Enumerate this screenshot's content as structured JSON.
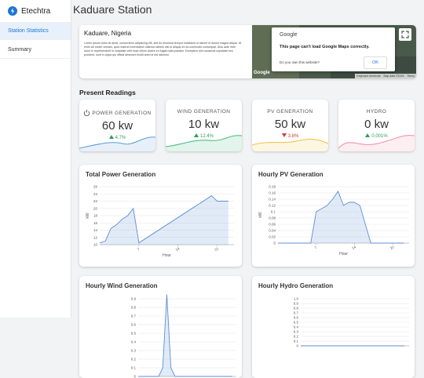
{
  "sidebar": {
    "brand": "Etechtra",
    "menu": [
      "Station Statistics",
      "Summary"
    ]
  },
  "header": {
    "title": "Kaduare Station"
  },
  "station": {
    "location": "Kaduare, Nigeria",
    "description": "Lorem ipsum dolor sit amet, consectetur adipiscing elit, sed do eiusmod tempor incididunt ut labore et dolore magna aliqua. Ut enim ad minim veniam, quis nostrud exercitation ullamco laboris nisi ut aliquip ex ea commodo consequat. Duis aute irure dolor in reprehenderit in voluptate velit esse cillum dolore eu fugiat nulla pariatur. Excepteur sint occaecat cupidatat non proident, sunt in culpa qui officia deserunt mollit anim id est laborum."
  },
  "map": {
    "dialog_title": "Google",
    "message": "This page can't load Google Maps correctly.",
    "question": "Do you own this website?",
    "button": "OK",
    "footer": [
      "Keyboard shortcuts",
      "Map data ©2023",
      "Terms"
    ]
  },
  "readings": {
    "title": "Present Readings",
    "cards": [
      {
        "label": "POWER GENERATION",
        "value": "60 kw",
        "change": "4.7%",
        "direction": "up",
        "color": "#5b9bd5"
      },
      {
        "label": "WIND GENERATION",
        "value": "10 kw",
        "change": "12.4%",
        "direction": "up",
        "color": "#3cb878"
      },
      {
        "label": "PV GENERATION",
        "value": "50 kw",
        "change": "3.8%",
        "direction": "down",
        "color": "#f0c040"
      },
      {
        "label": "HYDRO",
        "value": "0 kw",
        "change": "0.001%",
        "direction": "up",
        "color": "#f08ca0"
      }
    ]
  },
  "charts": [
    {
      "type": "line",
      "title": "Total Power Generation",
      "xlabel": "Hour",
      "ylabel": "kW",
      "x": [
        0,
        1,
        2,
        3,
        4,
        5,
        6,
        7,
        8,
        9,
        10,
        11,
        12,
        13,
        14,
        15,
        16,
        17,
        18,
        19,
        20,
        21,
        22,
        23
      ],
      "values": [
        10.5,
        11,
        14.5,
        15.5,
        17,
        18,
        20,
        10.5,
        11.5,
        12.5,
        13.5,
        14.5,
        15.5,
        16.5,
        17.5,
        18.5,
        19.5,
        20.5,
        21.5,
        22.5,
        23.5,
        22,
        22,
        22
      ],
      "xlim": [
        0,
        24
      ],
      "xticks": [
        7,
        14,
        21
      ],
      "ylim": [
        10,
        26
      ],
      "yticks": [
        10,
        12,
        14,
        16,
        18,
        20,
        22,
        24,
        26
      ],
      "color": "#5b8fd6"
    },
    {
      "type": "line",
      "title": "Hourly PV Generation",
      "xlabel": "Hour",
      "ylabel": "kW",
      "x": [
        0,
        1,
        2,
        3,
        4,
        5,
        6,
        7,
        8,
        9,
        10,
        11,
        12,
        13,
        14,
        15,
        16,
        17,
        18,
        19,
        20,
        21,
        22,
        23
      ],
      "values": [
        0,
        0,
        0,
        0,
        0,
        0,
        0,
        0.1,
        0.11,
        0.12,
        0.14,
        0.165,
        0.12,
        0.13,
        0.13,
        0.12,
        0.06,
        0,
        0,
        0,
        0,
        0,
        0,
        0
      ],
      "xlim": [
        0,
        24
      ],
      "xticks": [
        7,
        14,
        21
      ],
      "ylim": [
        0,
        0.18
      ],
      "yticks": [
        0,
        0.02,
        0.04,
        0.06,
        0.08,
        0.1,
        0.12,
        0.14,
        0.16,
        0.18
      ],
      "color": "#5b8fd6"
    },
    {
      "type": "line",
      "title": "Hourly Wind Generation",
      "x": [
        0,
        1,
        2,
        3,
        4,
        5,
        6,
        7,
        8,
        9,
        10,
        11,
        12,
        13,
        14,
        15,
        16,
        17,
        18,
        19,
        20,
        21,
        22,
        23
      ],
      "values": [
        0,
        0,
        0,
        0,
        0,
        0,
        0.1,
        0.95,
        0.1,
        0,
        0,
        0,
        0,
        0,
        0,
        0,
        0,
        0,
        0,
        0,
        0,
        0,
        0,
        0
      ],
      "xlim": [
        0,
        24
      ],
      "ylim": [
        0,
        0.95
      ],
      "yticks": [
        0,
        0.1,
        0.2,
        0.3,
        0.4,
        0.5,
        0.6,
        0.7,
        0.8,
        0.9
      ],
      "color": "#5b8fd6"
    },
    {
      "type": "line",
      "title": "Hourly Hydro Generation",
      "x": [
        0,
        1,
        2,
        3,
        4,
        5,
        6,
        7,
        8,
        9,
        10,
        11,
        12,
        13,
        14,
        15,
        16,
        17,
        18,
        19,
        20,
        21,
        22,
        23
      ],
      "values": [
        0,
        0,
        0,
        0,
        0,
        0,
        0,
        0,
        0,
        0,
        0,
        0,
        0,
        0,
        0,
        0,
        0,
        0,
        0,
        0,
        0,
        0,
        0,
        0
      ],
      "xlim": [
        0,
        24
      ],
      "ylim": [
        0,
        1
      ],
      "yticks": [
        0,
        {
          "value": 0.1,
          "label": "0.1"
        },
        0.2,
        0.3,
        0.4,
        0.5,
        0.6,
        0.7,
        0.8,
        0.9,
        {
          "value": 1,
          "label": "1.0"
        }
      ],
      "color": "#5b8fd6"
    }
  ]
}
